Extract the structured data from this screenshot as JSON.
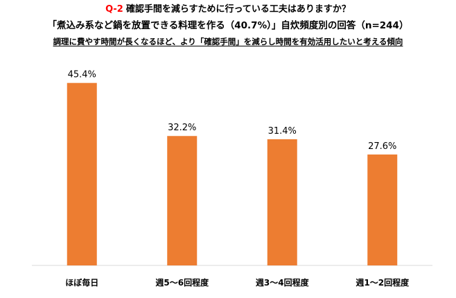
{
  "header": {
    "question_prefix": "Q-2",
    "question_text": "確認手間を減らすために行っている工夫はありますか？",
    "subtitle": "「煮込み系など鍋を放置できる料理を作る（40.7%）」自炊頻度別の回答（n=244）",
    "note": "調理に費やす時間が長くなるほど、より「確認手間」を減らし時間を有効活用したいと考える傾向"
  },
  "colors": {
    "bar": "#ed7d31",
    "accent": "#ff0000",
    "axis": "#d9d9d9"
  },
  "chart_data": {
    "type": "bar",
    "categories": [
      "ほぼ毎日",
      "週5～6回程度",
      "週3～4回程度",
      "週1～2回程度"
    ],
    "values": [
      45.4,
      32.2,
      31.4,
      27.6
    ],
    "value_labels": [
      "45.4%",
      "32.2%",
      "31.4%",
      "27.6%"
    ],
    "ylim": [
      0,
      50
    ],
    "grid": false,
    "legend": "none"
  }
}
